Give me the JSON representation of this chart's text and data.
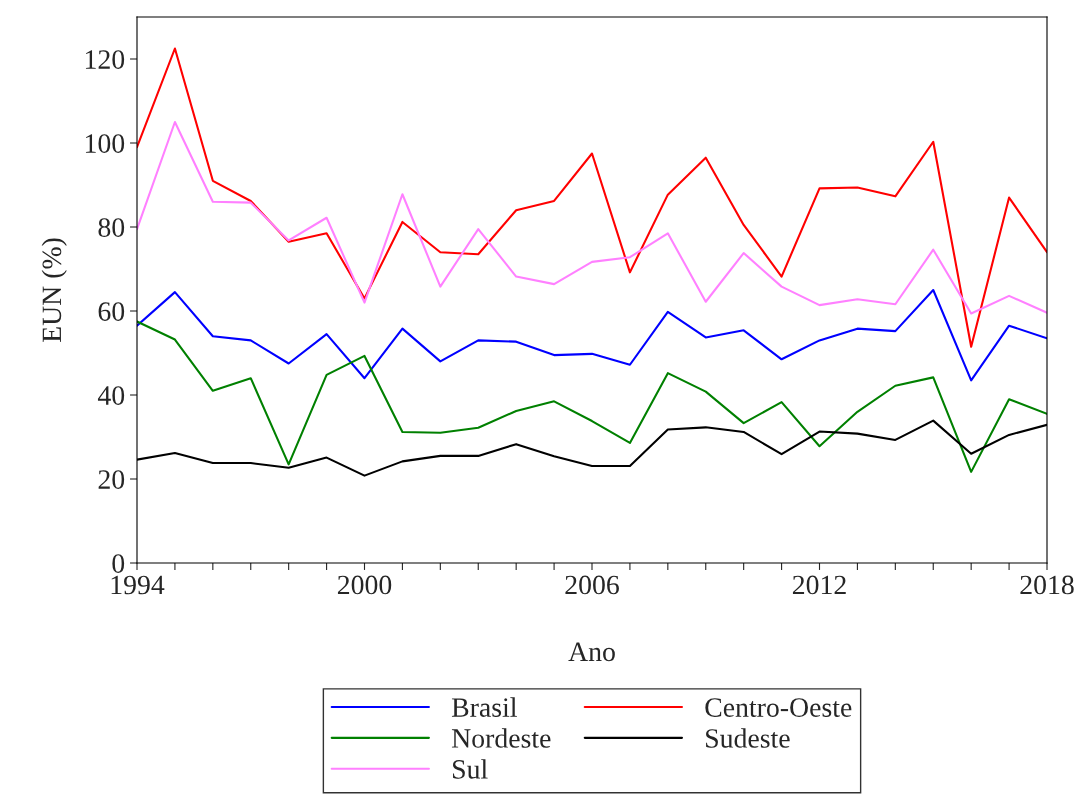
{
  "chart_data": {
    "type": "line",
    "xlabel": "Ano",
    "ylabel": "EUN (%)",
    "x": [
      1994,
      1995,
      1996,
      1997,
      1998,
      1999,
      2000,
      2001,
      2002,
      2003,
      2004,
      2005,
      2006,
      2007,
      2008,
      2009,
      2010,
      2011,
      2012,
      2013,
      2014,
      2015,
      2016,
      2017,
      2018
    ],
    "series": [
      {
        "name": "Brasil",
        "color": "#0000ff",
        "values": [
          56.5,
          64.5,
          54,
          53,
          47.5,
          54.5,
          44,
          55.8,
          48,
          53,
          52.7,
          49.5,
          49.8,
          47.2,
          59.8,
          53.7,
          55.4,
          48.5,
          53,
          55.8,
          55.2,
          65,
          43.5,
          56.5,
          53.5
        ]
      },
      {
        "name": "Centro-Oeste",
        "color": "#ff0000",
        "values": [
          99,
          122.5,
          91,
          86.2,
          76.5,
          78.5,
          63,
          81.2,
          74,
          73.5,
          84,
          86.2,
          97.5,
          69.2,
          87.7,
          96.5,
          80.5,
          68.2,
          89.2,
          89.4,
          87.3,
          100.3,
          51.5,
          87,
          74
        ]
      },
      {
        "name": "Nordeste",
        "color": "#008000",
        "values": [
          57.5,
          53.2,
          41,
          44,
          23.5,
          44.8,
          49.3,
          31.2,
          31,
          32.2,
          36.2,
          38.5,
          33.8,
          28.6,
          45.2,
          40.8,
          33.3,
          38.3,
          27.8,
          36,
          42.2,
          44.2,
          21.7,
          39,
          35.5
        ]
      },
      {
        "name": "Sudeste",
        "color": "#000000",
        "values": [
          24.6,
          26.2,
          23.8,
          23.8,
          22.7,
          25.1,
          20.8,
          24.2,
          25.5,
          25.5,
          28.3,
          25.4,
          23.1,
          23.1,
          31.8,
          32.3,
          31.2,
          25.9,
          31.3,
          30.8,
          29.3,
          33.9,
          26,
          30.5,
          32.9
        ]
      },
      {
        "name": "Sul",
        "color": "#ff80ff",
        "values": [
          79.5,
          105,
          86,
          85.8,
          76.8,
          82.2,
          62,
          87.8,
          65.8,
          79.5,
          68.2,
          66.4,
          71.7,
          72.8,
          78.5,
          62.2,
          73.8,
          65.8,
          61.4,
          62.8,
          61.6,
          74.6,
          59.4,
          63.6,
          59.6
        ]
      }
    ],
    "xlim": [
      1994,
      2018
    ],
    "xticks": [
      1994,
      {
        "value": 1995,
        "label": null
      },
      {
        "value": 1996,
        "label": null
      },
      {
        "value": 1997,
        "label": null
      },
      {
        "value": 1998,
        "label": null
      },
      {
        "value": 1999,
        "label": null
      },
      2000,
      {
        "value": 2001,
        "label": null
      },
      {
        "value": 2002,
        "label": null
      },
      {
        "value": 2003,
        "label": null
      },
      {
        "value": 2004,
        "label": null
      },
      {
        "value": 2005,
        "label": null
      },
      2006,
      {
        "value": 2007,
        "label": null
      },
      {
        "value": 2008,
        "label": null
      },
      {
        "value": 2009,
        "label": null
      },
      {
        "value": 2010,
        "label": null
      },
      {
        "value": 2011,
        "label": null
      },
      2012,
      {
        "value": 2013,
        "label": null
      },
      {
        "value": 2014,
        "label": null
      },
      {
        "value": 2015,
        "label": null
      },
      {
        "value": 2016,
        "label": null
      },
      {
        "value": 2017,
        "label": null
      },
      2018
    ],
    "ylim": [
      0,
      130
    ],
    "yticks": [
      0,
      20,
      40,
      60,
      80,
      100,
      120
    ],
    "grid": false,
    "legend": "bottom",
    "marker": "none",
    "line_style": "solid"
  }
}
